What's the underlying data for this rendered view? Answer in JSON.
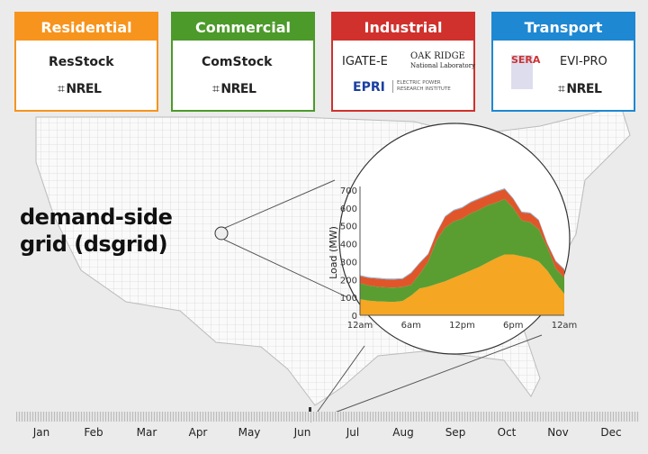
{
  "sectors": [
    {
      "label": "Residential",
      "color": "#f7941d",
      "logos": [
        "ResStock",
        "NREL"
      ]
    },
    {
      "label": "Commercial",
      "color": "#4c9a2a",
      "logos": [
        "ComStock",
        "NREL"
      ]
    },
    {
      "label": "Industrial",
      "color": "#d0312d",
      "logos": [
        "IGATE-E",
        "OAK RIDGE",
        "National Laboratory",
        "EPRI",
        "ELECTRIC POWER",
        "RESEARCH INSTITUTE"
      ]
    },
    {
      "label": "Transport",
      "color": "#1e88d2",
      "logos": [
        "SERA",
        "EVI-PRO",
        "NREL"
      ]
    }
  ],
  "title_line1": "demand-side",
  "title_line2": "grid (dsgrid)",
  "months": [
    "Jan",
    "Feb",
    "Mar",
    "Apr",
    "May",
    "Jun",
    "Jul",
    "Aug",
    "Sep",
    "Oct",
    "Nov",
    "Dec"
  ],
  "selected_month": "Jun",
  "chart_data": {
    "type": "area",
    "stacked": true,
    "ylabel": "Load (MW)",
    "xlabel": "",
    "ylim": [
      0,
      700
    ],
    "yticks": [
      0,
      100,
      200,
      300,
      400,
      500,
      600,
      700
    ],
    "xtick_labels": [
      "12am",
      "6am",
      "12pm",
      "6pm",
      "12am"
    ],
    "xtick_hours": [
      0,
      6,
      12,
      18,
      24
    ],
    "x": [
      0,
      1,
      2,
      3,
      4,
      5,
      6,
      7,
      8,
      9,
      10,
      11,
      12,
      13,
      14,
      15,
      16,
      17,
      18,
      19,
      20,
      21,
      22,
      23,
      24
    ],
    "series": [
      {
        "name": "Residential",
        "color": "#f5a623",
        "values": [
          90,
          82,
          78,
          76,
          75,
          80,
          110,
          150,
          160,
          175,
          190,
          210,
          230,
          250,
          270,
          295,
          320,
          340,
          340,
          330,
          320,
          300,
          250,
          180,
          120
        ]
      },
      {
        "name": "Commercial",
        "color": "#5a9e32",
        "values": [
          90,
          85,
          82,
          80,
          80,
          78,
          60,
          80,
          140,
          245,
          300,
          315,
          310,
          320,
          320,
          320,
          310,
          310,
          260,
          200,
          200,
          180,
          130,
          80,
          90
        ]
      },
      {
        "name": "Industrial",
        "color": "#e0562a",
        "values": [
          40,
          42,
          45,
          45,
          45,
          45,
          65,
          60,
          40,
          40,
          60,
          60,
          60,
          60,
          60,
          55,
          60,
          55,
          50,
          45,
          50,
          50,
          20,
          40,
          45
        ]
      },
      {
        "name": "Transport",
        "color": "#8ab4d8",
        "values": [
          5,
          5,
          5,
          5,
          5,
          5,
          5,
          5,
          5,
          5,
          5,
          5,
          5,
          5,
          5,
          5,
          5,
          5,
          5,
          5,
          5,
          5,
          5,
          5,
          5
        ]
      }
    ]
  }
}
